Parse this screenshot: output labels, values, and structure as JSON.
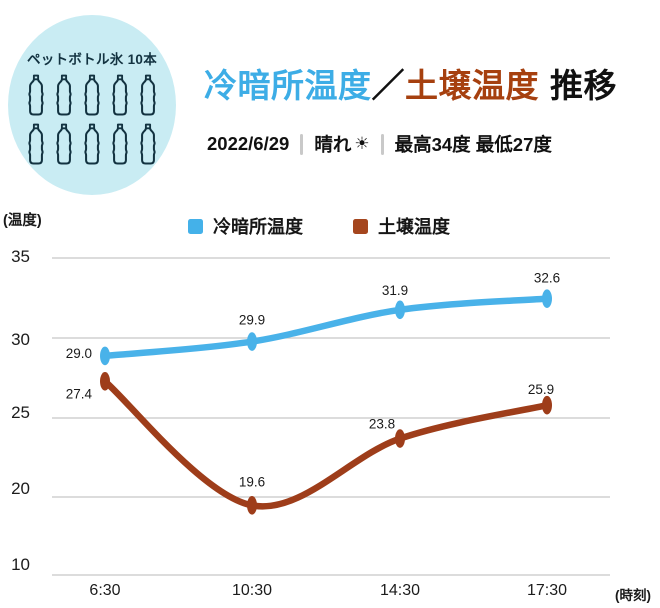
{
  "badge": {
    "label": "ペットボトル氷 10本",
    "bottle_count": 10,
    "bg_color": "#c9ecf3",
    "icon_color": "#123240"
  },
  "header": {
    "title_part1": "冷暗所温度",
    "title_slash": "／",
    "title_part2": "土壌温度",
    "title_suffix": "推移",
    "accent_blue": "#3dade6",
    "accent_brown": "#a6400f",
    "subtitle": {
      "date": "2022/6/29",
      "weather": "晴れ",
      "weather_icon": "☀",
      "temps": "最高34度 最低27度"
    }
  },
  "legend": [
    {
      "label": "冷暗所温度",
      "color": "#44b1e9"
    },
    {
      "label": "土壌温度",
      "color": "#a5461e"
    }
  ],
  "chart_data": {
    "type": "line",
    "title": "冷暗所温度／土壌温度 推移",
    "categories": [
      "6:30",
      "10:30",
      "14:30",
      "17:30"
    ],
    "series": [
      {
        "name": "冷暗所温度",
        "color": "#49b2e9",
        "values": [
          29.0,
          29.9,
          31.9,
          32.6
        ],
        "point_labels": [
          "29.0",
          "29.9",
          "31.9",
          "32.6"
        ]
      },
      {
        "name": "土壌温度",
        "color": "#9e3d1a",
        "values": [
          27.4,
          19.6,
          23.8,
          25.9
        ],
        "point_labels": [
          "27.4",
          "19.6",
          "23.8",
          "25.9"
        ]
      }
    ],
    "ylabel": "(温度)",
    "xlabel": "(時刻)",
    "yticks": [
      "35",
      "30",
      "25",
      "20",
      "10"
    ],
    "ylim": [
      10,
      35
    ],
    "grid": true,
    "legend_position": "top"
  }
}
